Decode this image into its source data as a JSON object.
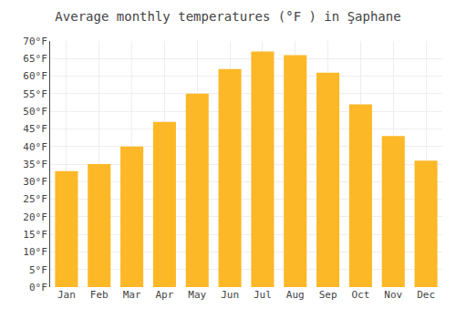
{
  "chart_data": {
    "type": "bar",
    "title": "Average monthly temperatures (°F ) in Şaphane",
    "categories": [
      "Jan",
      "Feb",
      "Mar",
      "Apr",
      "May",
      "Jun",
      "Jul",
      "Aug",
      "Sep",
      "Oct",
      "Nov",
      "Dec"
    ],
    "values": [
      33,
      35,
      40,
      47,
      55,
      62,
      67,
      66,
      61,
      52,
      43,
      36
    ],
    "color": "#FDB827",
    "ylim": [
      0,
      70
    ],
    "yticks": [
      {
        "value": 0,
        "label": "0°F"
      },
      {
        "value": 5,
        "label": "5°F"
      },
      {
        "value": 10,
        "label": "10°F"
      },
      {
        "value": 15,
        "label": "15°F"
      },
      {
        "value": 20,
        "label": "20°F"
      },
      {
        "value": 25,
        "label": "25°F"
      },
      {
        "value": 30,
        "label": "30°F"
      },
      {
        "value": 35,
        "label": "35°F"
      },
      {
        "value": 40,
        "label": "40°F"
      },
      {
        "value": 45,
        "label": "45°F"
      },
      {
        "value": 50,
        "label": "50°F"
      },
      {
        "value": 55,
        "label": "55°F"
      },
      {
        "value": 60,
        "label": "60°F"
      },
      {
        "value": 65,
        "label": "65°F"
      },
      {
        "value": 70,
        "label": "70°F"
      }
    ],
    "grid": true
  }
}
